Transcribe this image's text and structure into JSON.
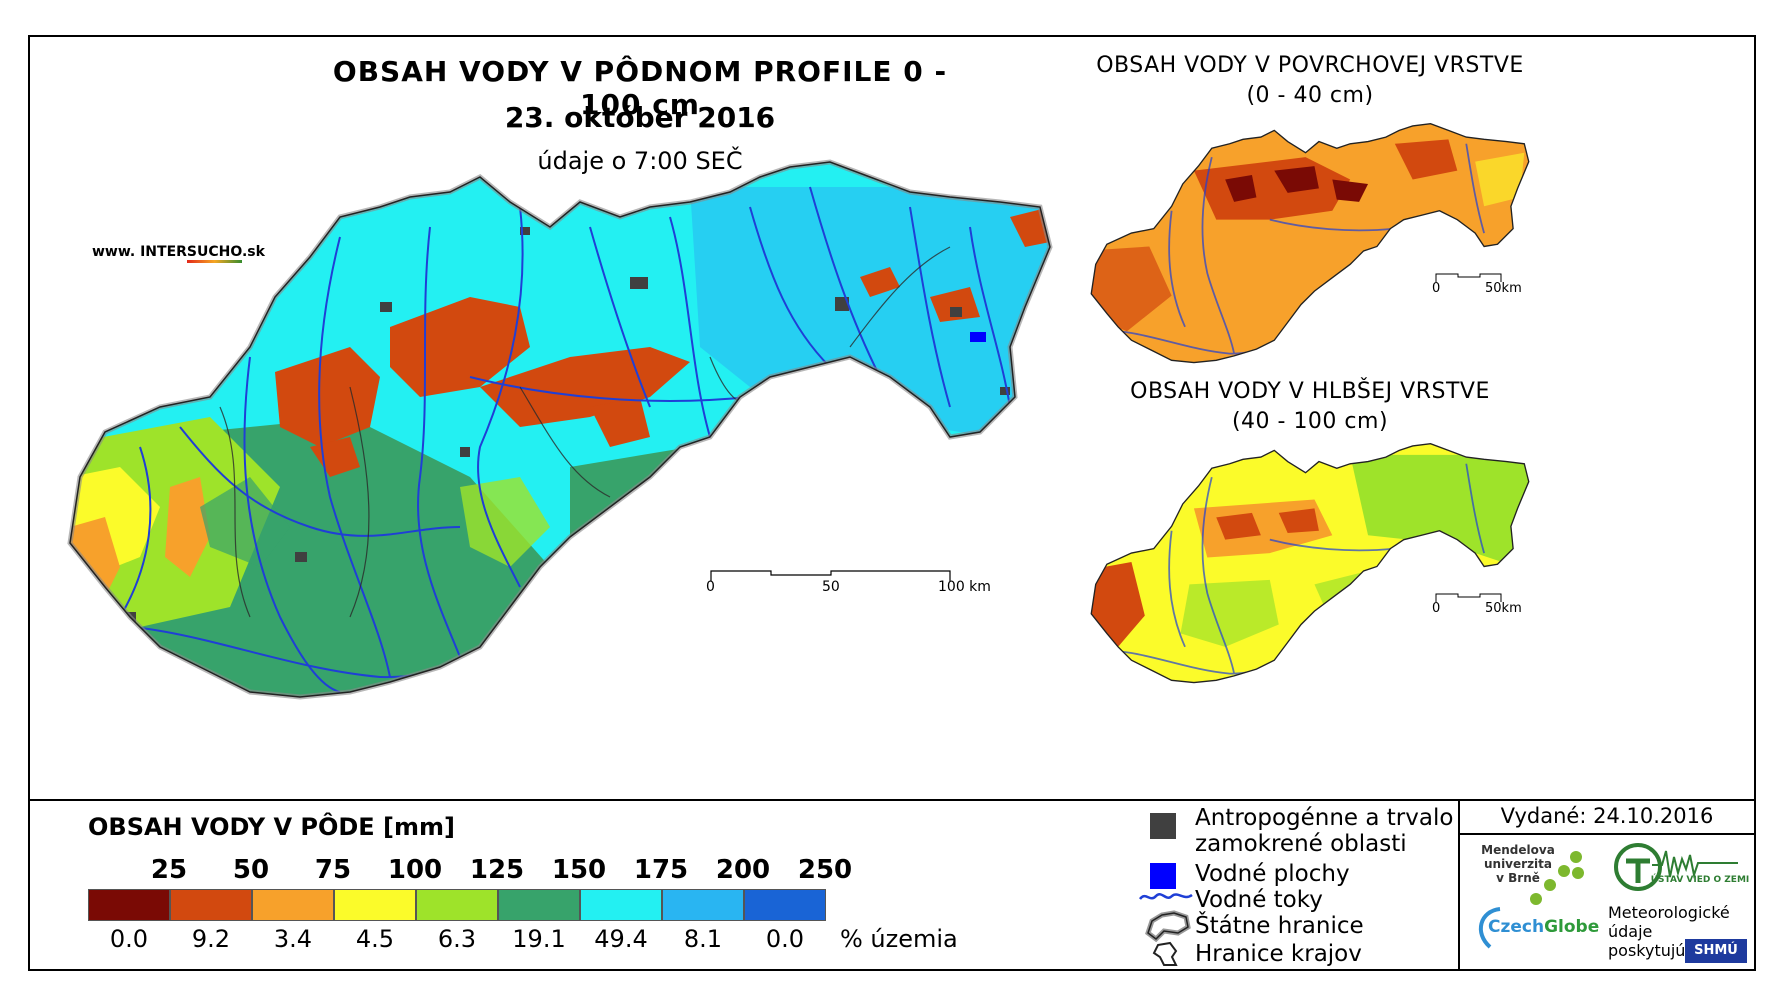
{
  "header": {
    "title": "OBSAH VODY V PÔDNOM PROFILE 0 - 100 cm",
    "date": "23. október 2016",
    "time_note": "údaje o 7:00 SEČ",
    "brand": {
      "prefix": "www. INTER",
      "highlight": "SUCHO",
      "suffix": ".sk"
    }
  },
  "insets": {
    "surface": {
      "title_line1": "OBSAH VODY V POVRCHOVEJ VRSTVE",
      "title_line2": "(0 - 40 cm)"
    },
    "deep": {
      "title_line1": "OBSAH VODY V HLBŠEJ VRSTVE",
      "title_line2": "(40 - 100 cm)"
    }
  },
  "scalebar_main": {
    "labels": [
      "0",
      "50",
      "100 km"
    ]
  },
  "scalebar_inset": {
    "labels": [
      "0",
      "50km"
    ]
  },
  "legend": {
    "title": "OBSAH VODY V PÔDE [mm]",
    "class_limits": [
      "25",
      "50",
      "75",
      "100",
      "125",
      "150",
      "175",
      "200",
      "250"
    ],
    "classes": [
      {
        "color": "#7a0a05",
        "percent": "0.0"
      },
      {
        "color": "#d2490f",
        "percent": "9.2"
      },
      {
        "color": "#f7a12b",
        "percent": "3.4"
      },
      {
        "color": "#fbfb2a",
        "percent": "4.5"
      },
      {
        "color": "#9ee32a",
        "percent": "6.3"
      },
      {
        "color": "#37a36b",
        "percent": "19.1"
      },
      {
        "color": "#23f0f2",
        "percent": "49.4"
      },
      {
        "color": "#29b5f2",
        "percent": "8.1"
      },
      {
        "color": "#1964d6",
        "percent": "0.0"
      }
    ],
    "percent_unit": "% územia",
    "symbols": {
      "urban_line1": "Antropogénne a trvalo",
      "urban_line2": "zamokrené oblasti",
      "water_bodies": "Vodné plochy",
      "rivers": "Vodné toky",
      "state_border": "Štátne hranice",
      "region_border": "Hranice krajov"
    },
    "symbol_colors": {
      "urban": "#404040",
      "water_bodies": "#0000ff",
      "rivers": "#1f3fd6"
    }
  },
  "footer": {
    "issued": "Vydané: 24.10.2016",
    "mendel": [
      "Mendelova",
      "univerzita",
      "v Brně"
    ],
    "czechglobe": {
      "part1": "Czech",
      "part2": "Globe"
    },
    "ustav": "ÚSTAV VIED O ZEMI",
    "meteo": [
      "Meteorologické",
      "údaje",
      "poskytujú:"
    ],
    "shmu": "SHMÚ"
  }
}
